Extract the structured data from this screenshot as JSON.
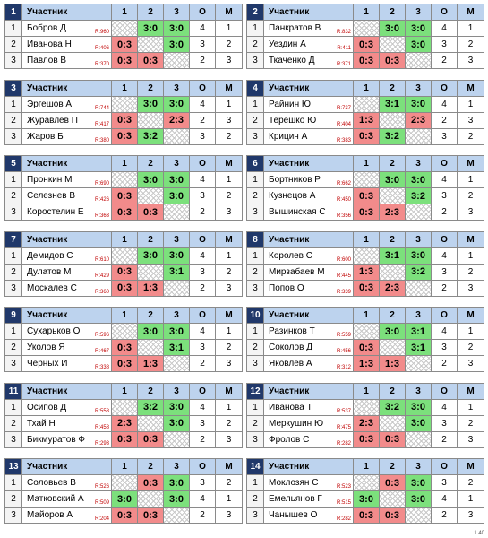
{
  "header": {
    "participant": "Участник",
    "c1": "1",
    "c2": "2",
    "c3": "3",
    "o": "О",
    "m": "М"
  },
  "version": "1.40",
  "groups": [
    {
      "num": "1",
      "rows": [
        {
          "n": "1",
          "name": "Бобров Д",
          "rating": "R:960",
          "s1": "",
          "s2": "3:0",
          "s3": "3:0",
          "o": "4",
          "m": "1"
        },
        {
          "n": "2",
          "name": "Иванова Н",
          "rating": "R:406",
          "s1": "0:3",
          "s2": "",
          "s3": "3:0",
          "o": "3",
          "m": "2"
        },
        {
          "n": "3",
          "name": "Павлов В",
          "rating": "R:370",
          "s1": "0:3",
          "s2": "0:3",
          "s3": "",
          "o": "2",
          "m": "3"
        }
      ]
    },
    {
      "num": "2",
      "rows": [
        {
          "n": "1",
          "name": "Панкратов В",
          "rating": "R:832",
          "s1": "",
          "s2": "3:0",
          "s3": "3:0",
          "o": "4",
          "m": "1"
        },
        {
          "n": "2",
          "name": "Уездин А",
          "rating": "R:411",
          "s1": "0:3",
          "s2": "",
          "s3": "3:0",
          "o": "3",
          "m": "2"
        },
        {
          "n": "3",
          "name": "Ткаченко Д",
          "rating": "R:371",
          "s1": "0:3",
          "s2": "0:3",
          "s3": "",
          "o": "2",
          "m": "3"
        }
      ]
    },
    {
      "num": "3",
      "rows": [
        {
          "n": "1",
          "name": "Эргешов А",
          "rating": "R:744",
          "s1": "",
          "s2": "3:0",
          "s3": "3:0",
          "o": "4",
          "m": "1"
        },
        {
          "n": "2",
          "name": "Журавлев П",
          "rating": "R:417",
          "s1": "0:3",
          "s2": "",
          "s3": "2:3",
          "o": "2",
          "m": "3"
        },
        {
          "n": "3",
          "name": "Жаров Б",
          "rating": "R:380",
          "s1": "0:3",
          "s2": "3:2",
          "s3": "",
          "o": "3",
          "m": "2"
        }
      ]
    },
    {
      "num": "4",
      "rows": [
        {
          "n": "1",
          "name": "Райнин Ю",
          "rating": "R:737",
          "s1": "",
          "s2": "3:1",
          "s3": "3:0",
          "o": "4",
          "m": "1"
        },
        {
          "n": "2",
          "name": "Терешко Ю",
          "rating": "R:404",
          "s1": "1:3",
          "s2": "",
          "s3": "2:3",
          "o": "2",
          "m": "3"
        },
        {
          "n": "3",
          "name": "Крицин А",
          "rating": "R:383",
          "s1": "0:3",
          "s2": "3:2",
          "s3": "",
          "o": "3",
          "m": "2"
        }
      ]
    },
    {
      "num": "5",
      "rows": [
        {
          "n": "1",
          "name": "Пронкин М",
          "rating": "R:690",
          "s1": "",
          "s2": "3:0",
          "s3": "3:0",
          "o": "4",
          "m": "1"
        },
        {
          "n": "2",
          "name": "Селезнев В",
          "rating": "R:426",
          "s1": "0:3",
          "s2": "",
          "s3": "3:0",
          "o": "3",
          "m": "2"
        },
        {
          "n": "3",
          "name": "Коростелин Е",
          "rating": "R:363",
          "s1": "0:3",
          "s2": "0:3",
          "s3": "",
          "o": "2",
          "m": "3"
        }
      ]
    },
    {
      "num": "6",
      "rows": [
        {
          "n": "1",
          "name": "Бортников Р",
          "rating": "R:662",
          "s1": "",
          "s2": "3:0",
          "s3": "3:0",
          "o": "4",
          "m": "1"
        },
        {
          "n": "2",
          "name": "Кузнецов А",
          "rating": "R:450",
          "s1": "0:3",
          "s2": "",
          "s3": "3:2",
          "o": "3",
          "m": "2"
        },
        {
          "n": "3",
          "name": "Вышинская С",
          "rating": "R:356",
          "s1": "0:3",
          "s2": "2:3",
          "s3": "",
          "o": "2",
          "m": "3"
        }
      ]
    },
    {
      "num": "7",
      "rows": [
        {
          "n": "1",
          "name": "Демидов С",
          "rating": "R:610",
          "s1": "",
          "s2": "3:0",
          "s3": "3:0",
          "o": "4",
          "m": "1"
        },
        {
          "n": "2",
          "name": "Дулатов М",
          "rating": "R:429",
          "s1": "0:3",
          "s2": "",
          "s3": "3:1",
          "o": "3",
          "m": "2"
        },
        {
          "n": "3",
          "name": "Москалев С",
          "rating": "R:360",
          "s1": "0:3",
          "s2": "1:3",
          "s3": "",
          "o": "2",
          "m": "3"
        }
      ]
    },
    {
      "num": "8",
      "rows": [
        {
          "n": "1",
          "name": "Королев С",
          "rating": "R:600",
          "s1": "",
          "s2": "3:1",
          "s3": "3:0",
          "o": "4",
          "m": "1"
        },
        {
          "n": "2",
          "name": "Мирзабаев М",
          "rating": "R:445",
          "s1": "1:3",
          "s2": "",
          "s3": "3:2",
          "o": "3",
          "m": "2"
        },
        {
          "n": "3",
          "name": "Попов О",
          "rating": "R:339",
          "s1": "0:3",
          "s2": "2:3",
          "s3": "",
          "o": "2",
          "m": "3"
        }
      ]
    },
    {
      "num": "9",
      "rows": [
        {
          "n": "1",
          "name": "Сухарьков О",
          "rating": "R:596",
          "s1": "",
          "s2": "3:0",
          "s3": "3:0",
          "o": "4",
          "m": "1"
        },
        {
          "n": "2",
          "name": "Уколов Я",
          "rating": "R:467",
          "s1": "0:3",
          "s2": "",
          "s3": "3:1",
          "o": "3",
          "m": "2"
        },
        {
          "n": "3",
          "name": "Черных И",
          "rating": "R:338",
          "s1": "0:3",
          "s2": "1:3",
          "s3": "",
          "o": "2",
          "m": "3"
        }
      ]
    },
    {
      "num": "10",
      "rows": [
        {
          "n": "1",
          "name": "Разинков Т",
          "rating": "R:559",
          "s1": "",
          "s2": "3:0",
          "s3": "3:1",
          "o": "4",
          "m": "1"
        },
        {
          "n": "2",
          "name": "Соколов Д",
          "rating": "R:456",
          "s1": "0:3",
          "s2": "",
          "s3": "3:1",
          "o": "3",
          "m": "2"
        },
        {
          "n": "3",
          "name": "Яковлев А",
          "rating": "R:312",
          "s1": "1:3",
          "s2": "1:3",
          "s3": "",
          "o": "2",
          "m": "3"
        }
      ]
    },
    {
      "num": "11",
      "rows": [
        {
          "n": "1",
          "name": "Осипов Д",
          "rating": "R:558",
          "s1": "",
          "s2": "3:2",
          "s3": "3:0",
          "o": "4",
          "m": "1"
        },
        {
          "n": "2",
          "name": "Тхай Н",
          "rating": "R:458",
          "s1": "2:3",
          "s2": "",
          "s3": "3:0",
          "o": "3",
          "m": "2"
        },
        {
          "n": "3",
          "name": "Бикмуратов Ф",
          "rating": "R:293",
          "s1": "0:3",
          "s2": "0:3",
          "s3": "",
          "o": "2",
          "m": "3"
        }
      ]
    },
    {
      "num": "12",
      "rows": [
        {
          "n": "1",
          "name": "Иванова Т",
          "rating": "R:537",
          "s1": "",
          "s2": "3:2",
          "s3": "3:0",
          "o": "4",
          "m": "1"
        },
        {
          "n": "2",
          "name": "Меркушин Ю",
          "rating": "R:475",
          "s1": "2:3",
          "s2": "",
          "s3": "3:0",
          "o": "3",
          "m": "2"
        },
        {
          "n": "3",
          "name": "Фролов С",
          "rating": "R:282",
          "s1": "0:3",
          "s2": "0:3",
          "s3": "",
          "o": "2",
          "m": "3"
        }
      ]
    },
    {
      "num": "13",
      "rows": [
        {
          "n": "1",
          "name": "Соловьев В",
          "rating": "R:526",
          "s1": "",
          "s2": "0:3",
          "s3": "3:0",
          "o": "3",
          "m": "2"
        },
        {
          "n": "2",
          "name": "Матковский А",
          "rating": "R:509",
          "s1": "3:0",
          "s2": "",
          "s3": "3:0",
          "o": "4",
          "m": "1"
        },
        {
          "n": "3",
          "name": "Майоров А",
          "rating": "R:204",
          "s1": "0:3",
          "s2": "0:3",
          "s3": "",
          "o": "2",
          "m": "3"
        }
      ]
    },
    {
      "num": "14",
      "rows": [
        {
          "n": "1",
          "name": "Моклозян С",
          "rating": "R:523",
          "s1": "",
          "s2": "0:3",
          "s3": "3:0",
          "o": "3",
          "m": "2"
        },
        {
          "n": "2",
          "name": "Емельянов Г",
          "rating": "R:515",
          "s1": "3:0",
          "s2": "",
          "s3": "3:0",
          "o": "4",
          "m": "1"
        },
        {
          "n": "3",
          "name": "Чанышев О",
          "rating": "R:282",
          "s1": "0:3",
          "s2": "0:3",
          "s3": "",
          "o": "2",
          "m": "3"
        }
      ]
    }
  ]
}
